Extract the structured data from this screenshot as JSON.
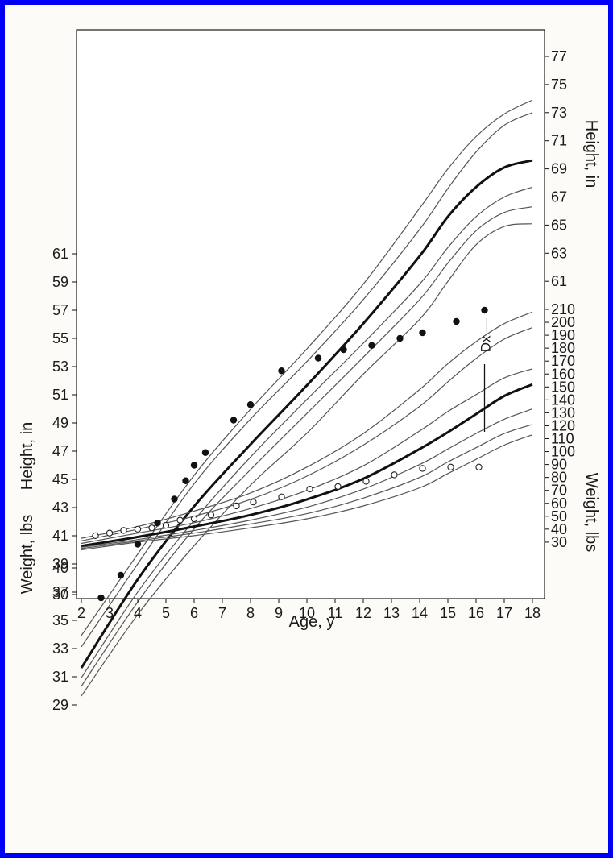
{
  "chart_data": {
    "type": "line",
    "xlabel": "Age, y",
    "left_ylabel_height": "Height, in",
    "left_ylabel_weight": "Weight, lbs",
    "right_ylabel_height": "Height, in",
    "right_ylabel_weight": "Weight, lbs",
    "x_ticks": [
      2,
      3,
      4,
      5,
      6,
      7,
      8,
      9,
      10,
      11,
      12,
      13,
      14,
      15,
      16,
      17,
      18
    ],
    "left_height_ticks": [
      29,
      31,
      33,
      35,
      37,
      39,
      41,
      43,
      45,
      47,
      49,
      51,
      53,
      55,
      57,
      59,
      61
    ],
    "left_weight_ticks": [
      30,
      40
    ],
    "right_height_ticks": [
      61,
      63,
      65,
      67,
      69,
      71,
      73,
      75,
      77
    ],
    "right_weight_ticks": [
      30,
      40,
      50,
      60,
      70,
      80,
      90,
      100,
      110,
      120,
      130,
      140,
      150,
      160,
      170,
      180,
      190,
      200,
      210
    ],
    "annotation": "Dx",
    "annotation_age": 16.3,
    "height_curves": [
      {
        "x": [
          2,
          4,
          6,
          8,
          10,
          12,
          14,
          15,
          16,
          17,
          18
        ],
        "y": [
          35.8,
          41.6,
          47.2,
          51.9,
          56.2,
          60.8,
          66.2,
          69.0,
          71.3,
          72.9,
          73.9
        ]
      },
      {
        "x": [
          2,
          4,
          6,
          8,
          10,
          12,
          14,
          15,
          16,
          17,
          18
        ],
        "y": [
          35.0,
          40.9,
          46.6,
          51.2,
          55.3,
          59.7,
          64.7,
          67.6,
          70.2,
          72.1,
          73.0
        ]
      },
      {
        "x": [
          2,
          4,
          6,
          8,
          10,
          12,
          14,
          15,
          16,
          17,
          18
        ],
        "y": [
          33.5,
          39.8,
          45.0,
          49.4,
          53.6,
          58.0,
          62.8,
          65.6,
          67.7,
          69.1,
          69.6
        ],
        "bold": true
      },
      {
        "x": [
          2,
          4,
          6,
          8,
          10,
          12,
          14,
          15,
          16,
          17,
          18
        ],
        "y": [
          32.8,
          38.9,
          44.0,
          48.5,
          52.6,
          56.6,
          60.8,
          63.4,
          65.6,
          67.0,
          67.7
        ]
      },
      {
        "x": [
          2,
          4,
          6,
          8,
          10,
          12,
          14,
          15,
          16,
          17,
          18
        ],
        "y": [
          32.2,
          38.2,
          43.4,
          47.6,
          51.6,
          55.6,
          59.7,
          62.3,
          64.6,
          65.9,
          66.3
        ]
      },
      {
        "x": [
          2,
          4,
          6,
          8,
          10,
          12,
          14,
          15,
          16,
          17,
          18
        ],
        "y": [
          31.5,
          37.3,
          42.2,
          46.5,
          50.2,
          54.4,
          58.3,
          61.0,
          63.6,
          64.9,
          65.1
        ]
      }
    ],
    "weight_curves": [
      {
        "x": [
          2,
          4,
          6,
          8,
          10,
          12,
          14,
          15,
          16,
          17,
          18
        ],
        "y": [
          33,
          42,
          54,
          68,
          88,
          114,
          148,
          168,
          185,
          199,
          208
        ]
      },
      {
        "x": [
          2,
          4,
          6,
          8,
          10,
          12,
          14,
          15,
          16,
          17,
          18
        ],
        "y": [
          31,
          40,
          50,
          63,
          81,
          105,
          135,
          154,
          172,
          187,
          196
        ]
      },
      {
        "x": [
          2,
          4,
          6,
          8,
          10,
          12,
          14,
          15,
          16,
          17,
          18
        ],
        "y": [
          29,
          37,
          45,
          56,
          70,
          89,
          116,
          131,
          144,
          157,
          164
        ]
      },
      {
        "x": [
          2,
          4,
          6,
          8,
          10,
          12,
          14,
          15,
          16,
          17,
          18
        ],
        "y": [
          27,
          34,
          42,
          51,
          63,
          79,
          102,
          115,
          129,
          143,
          152
        ],
        "bold": true
      },
      {
        "x": [
          2,
          4,
          6,
          8,
          10,
          12,
          14,
          15,
          16,
          17,
          18
        ],
        "y": [
          26,
          32,
          39,
          47,
          57,
          71,
          90,
          102,
          114,
          125,
          133
        ]
      },
      {
        "x": [
          2,
          4,
          6,
          8,
          10,
          12,
          14,
          15,
          16,
          17,
          18
        ],
        "y": [
          25,
          31,
          37,
          44,
          52,
          64,
          80,
          92,
          103,
          114,
          121
        ]
      },
      {
        "x": [
          2,
          4,
          6,
          8,
          10,
          12,
          14,
          15,
          16,
          17,
          18
        ],
        "y": [
          24,
          30,
          35,
          41,
          48,
          58,
          72,
          83,
          94,
          105,
          113
        ]
      }
    ],
    "height_points": {
      "x": [
        2.7,
        3.4,
        4.0,
        4.7,
        5.3,
        5.7,
        6.0,
        6.4,
        7.4,
        8.0,
        9.1,
        10.4,
        11.3,
        12.3,
        13.3,
        14.1,
        15.3,
        16.3
      ],
      "y": [
        36.6,
        38.2,
        40.4,
        41.9,
        43.6,
        44.9,
        46.0,
        46.9,
        49.2,
        50.3,
        52.7,
        53.6,
        54.2,
        54.5,
        55.0,
        55.4,
        56.2,
        57.0
      ]
    },
    "weight_points": {
      "x": [
        2.5,
        3.0,
        3.5,
        4.0,
        4.5,
        5.0,
        5.5,
        6.0,
        6.6,
        7.5,
        8.1,
        9.1,
        10.1,
        11.1,
        12.1,
        13.1,
        14.1,
        15.1,
        16.1
      ],
      "y": [
        35,
        37,
        39,
        40,
        41,
        43,
        47,
        48,
        51,
        58,
        61,
        65,
        71,
        73,
        77,
        82,
        87,
        88,
        88
      ]
    }
  }
}
